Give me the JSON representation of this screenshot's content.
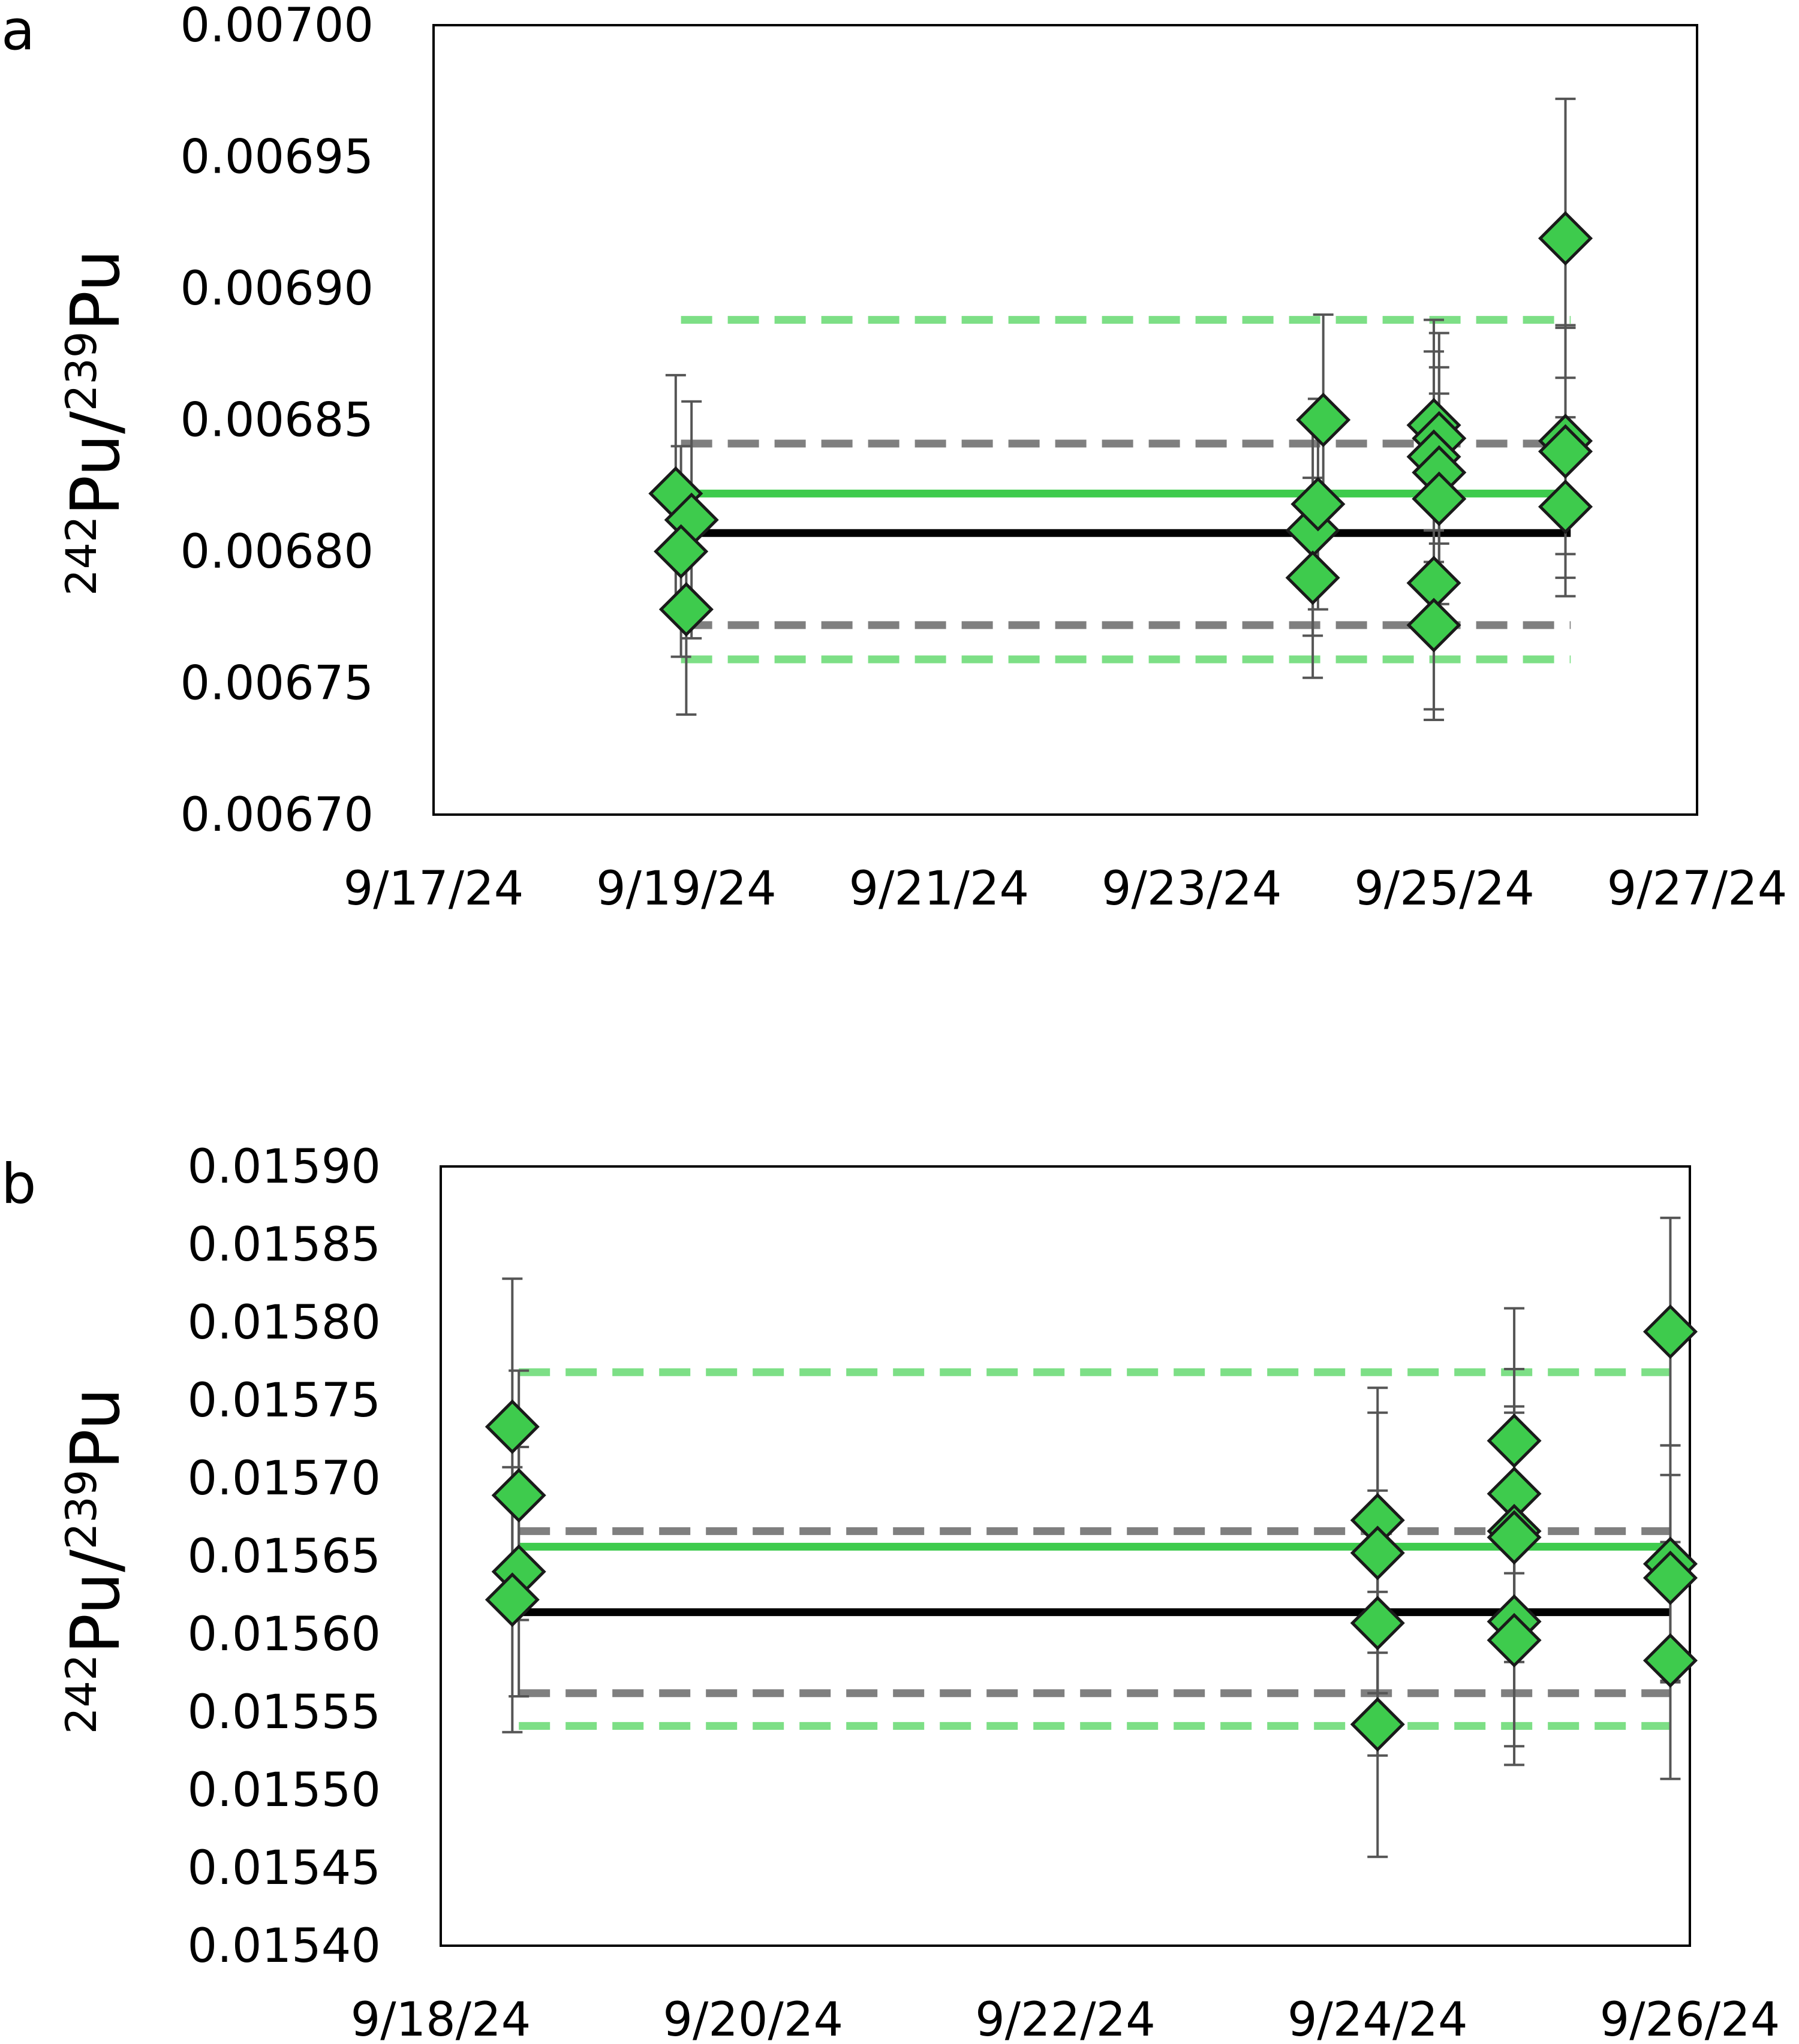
{
  "chart_data": [
    {
      "panel": "a",
      "type": "scatter",
      "title": "",
      "xlabel": "",
      "ylabel": {
        "mass1": "242",
        "elem1": "Pu",
        "sep": "/",
        "mass2": "239",
        "elem2": "Pu"
      },
      "x_ticks": [
        "9/17/24",
        "9/19/24",
        "9/21/24",
        "9/23/24",
        "9/25/24",
        "9/27/24"
      ],
      "xlim": [
        "2024-09-17",
        "2024-09-27"
      ],
      "y_ticks": [
        "0.00670",
        "0.00675",
        "0.00680",
        "0.00685",
        "0.00690",
        "0.00695",
        "0.00700"
      ],
      "ylim": [
        0.0067,
        0.007
      ],
      "grid": false,
      "marker": "diamond",
      "marker_color": "#3ecb4d",
      "points": [
        {
          "x": "2024-09-18 22:00",
          "y": 0.006822,
          "err": 4.5e-05
        },
        {
          "x": "2024-09-19 01:00",
          "y": 0.006812,
          "err": 4.5e-05
        },
        {
          "x": "2024-09-18 23:00",
          "y": 0.0068,
          "err": 4e-05
        },
        {
          "x": "2024-09-19 00:00",
          "y": 0.006778,
          "err": 4e-05
        },
        {
          "x": "2024-09-24 01:00",
          "y": 0.00685,
          "err": 4e-05
        },
        {
          "x": "2024-09-23 23:00",
          "y": 0.006808,
          "err": 4e-05
        },
        {
          "x": "2024-09-24 00:00",
          "y": 0.006818,
          "err": 4e-05
        },
        {
          "x": "2024-09-23 23:00",
          "y": 0.00679,
          "err": 3.8e-05
        },
        {
          "x": "2024-09-24 22:00",
          "y": 0.006848,
          "err": 4e-05
        },
        {
          "x": "2024-09-24 23:00",
          "y": 0.006843,
          "err": 4e-05
        },
        {
          "x": "2024-09-24 22:00",
          "y": 0.006836,
          "err": 4e-05
        },
        {
          "x": "2024-09-24 23:00",
          "y": 0.00683,
          "err": 4e-05
        },
        {
          "x": "2024-09-24 23:00",
          "y": 0.00682,
          "err": 4e-05
        },
        {
          "x": "2024-09-24 22:00",
          "y": 0.006788,
          "err": 4.8e-05
        },
        {
          "x": "2024-09-24 22:00",
          "y": 0.006772,
          "err": 3.6e-05
        },
        {
          "x": "2024-09-25 23:00",
          "y": 0.006919,
          "err": 5.3e-05
        },
        {
          "x": "2024-09-25 23:00",
          "y": 0.006842,
          "err": 4.3e-05
        },
        {
          "x": "2024-09-25 23:00",
          "y": 0.006838,
          "err": 4.8e-05
        },
        {
          "x": "2024-09-25 23:00",
          "y": 0.006817,
          "err": 3.4e-05
        }
      ],
      "lines": [
        {
          "style": "solid",
          "color": "#3ecb4d",
          "y": 0.006822,
          "x_start": "2024-09-18 23:00",
          "x_end": "2024-09-26 00:00"
        },
        {
          "style": "solid",
          "color": "#000000",
          "y": 0.006807,
          "x_start": "2024-09-18 23:00",
          "x_end": "2024-09-26 00:00"
        },
        {
          "style": "dashed",
          "color": "#7f7f7f",
          "y": 0.006841,
          "x_start": "2024-09-18 23:00",
          "x_end": "2024-09-26 00:00"
        },
        {
          "style": "dashed",
          "color": "#7f7f7f",
          "y": 0.006772,
          "x_start": "2024-09-18 23:00",
          "x_end": "2024-09-26 00:00"
        },
        {
          "style": "dashed",
          "color": "#7ddf86",
          "y": 0.006888,
          "x_start": "2024-09-18 23:00",
          "x_end": "2024-09-26 00:00"
        },
        {
          "style": "dashed",
          "color": "#7ddf86",
          "y": 0.006759,
          "x_start": "2024-09-18 23:00",
          "x_end": "2024-09-26 00:00"
        }
      ]
    },
    {
      "panel": "b",
      "type": "scatter",
      "title": "",
      "xlabel": "",
      "ylabel": {
        "mass1": "242",
        "elem1": "Pu",
        "sep": "/",
        "mass2": "239",
        "elem2": "Pu"
      },
      "x_ticks": [
        "9/18/24",
        "9/20/24",
        "9/22/24",
        "9/24/24",
        "9/26/24"
      ],
      "xlim": [
        "2024-09-18",
        "2024-09-26"
      ],
      "y_ticks": [
        "0.01540",
        "0.01545",
        "0.01550",
        "0.01555",
        "0.01560",
        "0.01565",
        "0.01570",
        "0.01575",
        "0.01580",
        "0.01585",
        "0.01590"
      ],
      "ylim": [
        0.0154,
        0.0159
      ],
      "grid": false,
      "marker": "diamond",
      "marker_color": "#3ecb4d",
      "points": [
        {
          "x": "2024-09-18 11:00",
          "y": 0.015733,
          "err": 9.5e-05
        },
        {
          "x": "2024-09-18 12:00",
          "y": 0.015689,
          "err": 8e-05
        },
        {
          "x": "2024-09-18 12:00",
          "y": 0.01564,
          "err": 8e-05
        },
        {
          "x": "2024-09-18 11:00",
          "y": 0.015622,
          "err": 8.5e-05
        },
        {
          "x": "2024-09-24 00:00",
          "y": 0.015673,
          "err": 8.5e-05
        },
        {
          "x": "2024-09-24 00:00",
          "y": 0.015652,
          "err": 9e-05
        },
        {
          "x": "2024-09-24 00:00",
          "y": 0.015607,
          "err": 8.5e-05
        },
        {
          "x": "2024-09-24 00:00",
          "y": 0.015542,
          "err": 8.5e-05
        },
        {
          "x": "2024-09-24 21:00",
          "y": 0.015724,
          "err": 8.5e-05
        },
        {
          "x": "2024-09-24 21:00",
          "y": 0.01569,
          "err": 8e-05
        },
        {
          "x": "2024-09-24 21:00",
          "y": 0.015666,
          "err": 8e-05
        },
        {
          "x": "2024-09-24 21:00",
          "y": 0.015662,
          "err": 8e-05
        },
        {
          "x": "2024-09-24 21:00",
          "y": 0.015608,
          "err": 8e-05
        },
        {
          "x": "2024-09-24 21:00",
          "y": 0.015596,
          "err": 8e-05
        },
        {
          "x": "2024-09-25 21:00",
          "y": 0.015794,
          "err": 7.3e-05
        },
        {
          "x": "2024-09-25 21:00",
          "y": 0.015645,
          "err": 7.6e-05
        },
        {
          "x": "2024-09-25 21:00",
          "y": 0.015636,
          "err": 6.6e-05
        },
        {
          "x": "2024-09-25 21:00",
          "y": 0.015583,
          "err": 7.6e-05
        }
      ],
      "lines": [
        {
          "style": "solid",
          "color": "#3ecb4d",
          "y": 0.015656,
          "x_start": "2024-09-18 12:00",
          "x_end": "2024-09-25 21:00"
        },
        {
          "style": "solid",
          "color": "#000000",
          "y": 0.015614,
          "x_start": "2024-09-18 12:00",
          "x_end": "2024-09-25 21:00"
        },
        {
          "style": "dashed",
          "color": "#7f7f7f",
          "y": 0.015666,
          "x_start": "2024-09-18 12:00",
          "x_end": "2024-09-25 21:00"
        },
        {
          "style": "dashed",
          "color": "#7f7f7f",
          "y": 0.015562,
          "x_start": "2024-09-18 12:00",
          "x_end": "2024-09-25 21:00"
        },
        {
          "style": "dashed",
          "color": "#7ddf86",
          "y": 0.015768,
          "x_start": "2024-09-18 12:00",
          "x_end": "2024-09-25 21:00"
        },
        {
          "style": "dashed",
          "color": "#7ddf86",
          "y": 0.015541,
          "x_start": "2024-09-18 12:00",
          "x_end": "2024-09-25 21:00"
        }
      ]
    }
  ]
}
